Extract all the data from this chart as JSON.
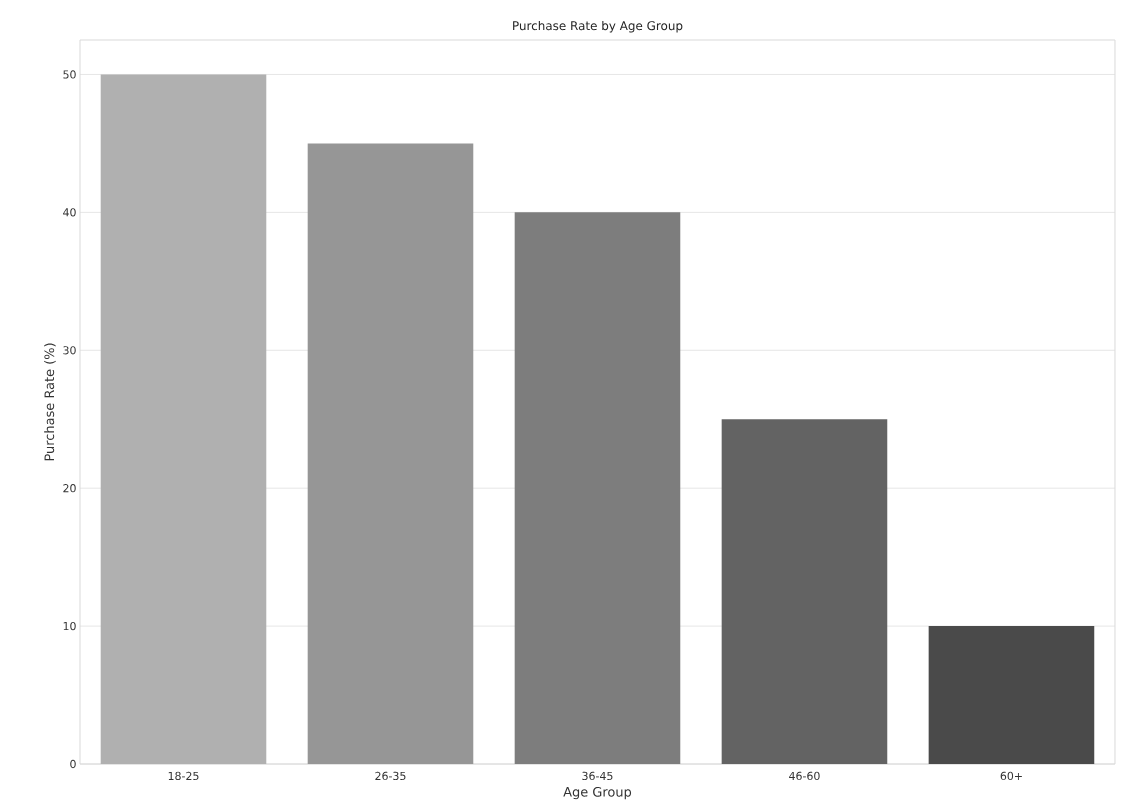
{
  "chart_data": {
    "type": "bar",
    "title": "Purchase Rate by Age Group",
    "xlabel": "Age Group",
    "ylabel": "Purchase Rate (%)",
    "categories": [
      "18-25",
      "26-35",
      "36-45",
      "46-60",
      "60+"
    ],
    "values": [
      50,
      45,
      40,
      25,
      10
    ],
    "colors": [
      "#b0b0b0",
      "#969696",
      "#7d7d7d",
      "#636363",
      "#4a4a4a"
    ],
    "ylim": [
      0,
      52.5
    ],
    "yticks": [
      0,
      10,
      20,
      30,
      40,
      50
    ],
    "grid": "y"
  }
}
